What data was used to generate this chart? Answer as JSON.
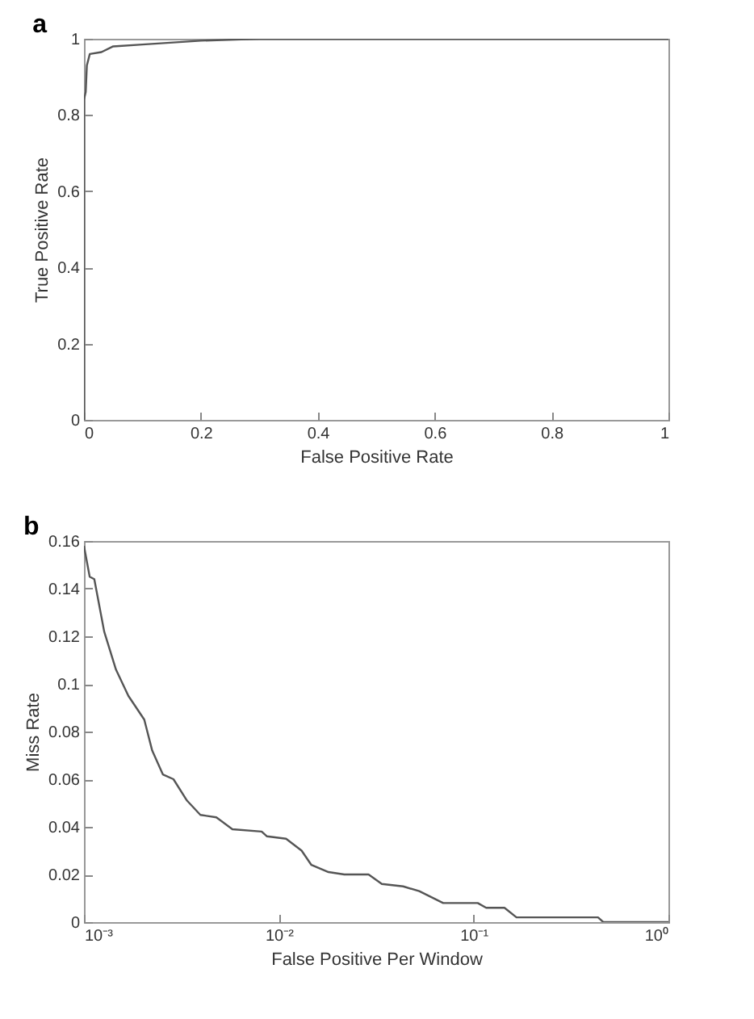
{
  "chart_data": [
    {
      "type": "line",
      "title": "a",
      "xlabel": "False Positive Rate",
      "ylabel": "True Positive Rate",
      "x": [
        0,
        0,
        0.003,
        0.005,
        0.01,
        0.03,
        0.05,
        0.1,
        0.2,
        0.3,
        1
      ],
      "values": [
        0,
        0.84,
        0.86,
        0.93,
        0.96,
        0.965,
        0.98,
        0.985,
        0.995,
        1,
        1
      ],
      "color": "#555555",
      "xlim": [
        0,
        1
      ],
      "ylim": [
        0,
        1
      ],
      "xticks": [
        0,
        0.2,
        0.4,
        0.6,
        0.8,
        1
      ],
      "yticks": [
        0,
        0.2,
        0.4,
        0.6,
        0.8,
        1
      ],
      "grid": false
    },
    {
      "type": "line",
      "title": "b",
      "xlabel": "False Positive Per Window",
      "ylabel": "Miss Rate",
      "log": "x",
      "x": [
        0.001,
        0.00107,
        0.00113,
        0.00127,
        0.00146,
        0.00169,
        0.00204,
        0.00224,
        0.00254,
        0.00288,
        0.00338,
        0.00396,
        0.00478,
        0.00578,
        0.00817,
        0.0087,
        0.0109,
        0.0131,
        0.0147,
        0.018,
        0.0217,
        0.0289,
        0.0338,
        0.0435,
        0.0526,
        0.0698,
        0.105,
        0.116,
        0.144,
        0.166,
        0.435,
        0.463,
        1
      ],
      "values": [
        0.158,
        0.145,
        0.144,
        0.122,
        0.106,
        0.095,
        0.085,
        0.072,
        0.062,
        0.06,
        0.051,
        0.045,
        0.044,
        0.039,
        0.038,
        0.036,
        0.035,
        0.03,
        0.024,
        0.021,
        0.02,
        0.02,
        0.016,
        0.015,
        0.013,
        0.008,
        0.008,
        0.006,
        0.006,
        0.002,
        0.002,
        0,
        0
      ],
      "color": "#555555",
      "xlim": [
        0.001,
        1
      ],
      "ylim": [
        0,
        0.16
      ],
      "xticks": [
        {
          "value": 0.001,
          "label": "10⁻³"
        },
        {
          "value": 0.01,
          "label": "10⁻²"
        },
        {
          "value": 0.1,
          "label": "10⁻¹"
        },
        {
          "value": 1,
          "label": "10⁰"
        }
      ],
      "yticks": [
        0,
        0.02,
        0.04,
        0.06,
        0.08,
        0.1,
        0.12,
        0.14,
        0.16
      ],
      "grid": false
    }
  ]
}
